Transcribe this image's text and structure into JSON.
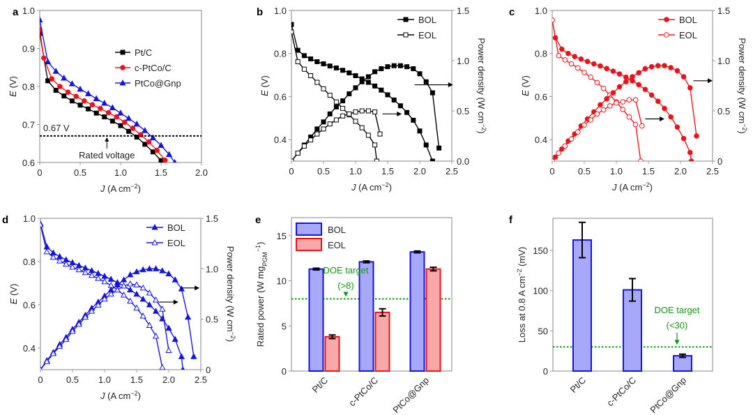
{
  "chart_data": [
    {
      "id": "a",
      "panel_letter": "a",
      "type": "line",
      "xlabel": "J (A cm−2)",
      "ylabel": "E (V)",
      "xlim": [
        0,
        2.0
      ],
      "ylim": [
        0.6,
        1.0
      ],
      "xticks": [
        "0",
        "0.5",
        "1.0",
        "1.5",
        "2.0"
      ],
      "yticks": [
        "0.6",
        "0.7",
        "0.8",
        "0.9",
        "1.0"
      ],
      "legend_position": "center-right",
      "series": [
        {
          "name": "Pt/C",
          "color": "#000000",
          "marker": "square",
          "x": [
            0,
            0.1,
            0.2,
            0.3,
            0.4,
            0.5,
            0.6,
            0.7,
            0.8,
            0.9,
            1.0,
            1.1,
            1.2,
            1.3,
            1.4,
            1.5
          ],
          "y": [
            0.94,
            0.815,
            0.79,
            0.775,
            0.762,
            0.751,
            0.741,
            0.73,
            0.72,
            0.709,
            0.697,
            0.682,
            0.667,
            0.648,
            0.628,
            0.605
          ]
        },
        {
          "name": "c-PtCo/C",
          "color": "#e8141c",
          "marker": "circle",
          "x": [
            0,
            0.05,
            0.15,
            0.25,
            0.35,
            0.45,
            0.55,
            0.65,
            0.75,
            0.85,
            0.95,
            1.05,
            1.15,
            1.25,
            1.35,
            1.45,
            1.55
          ],
          "y": [
            0.95,
            0.875,
            0.82,
            0.8,
            0.785,
            0.774,
            0.762,
            0.752,
            0.742,
            0.731,
            0.72,
            0.706,
            0.69,
            0.673,
            0.654,
            0.632,
            0.606
          ]
        },
        {
          "name": "PtCo@Gnp",
          "color": "#1414e0",
          "marker": "triangle",
          "x": [
            0,
            0.1,
            0.2,
            0.3,
            0.4,
            0.5,
            0.6,
            0.7,
            0.8,
            0.9,
            1.0,
            1.1,
            1.2,
            1.3,
            1.4,
            1.5,
            1.6,
            1.67
          ],
          "y": [
            0.975,
            0.865,
            0.84,
            0.822,
            0.807,
            0.793,
            0.781,
            0.768,
            0.756,
            0.744,
            0.73,
            0.716,
            0.701,
            0.684,
            0.665,
            0.645,
            0.621,
            0.6
          ]
        }
      ],
      "annotations": [
        {
          "text": "0.67 V",
          "type": "hline",
          "y": 0.67,
          "style": "dotted",
          "color": "#000000"
        },
        {
          "text": "Rated voltage",
          "type": "arrow-label",
          "x": 0.83
        }
      ]
    },
    {
      "id": "b",
      "panel_letter": "b",
      "type": "line",
      "xlabel": "J (A cm−2)",
      "ylabel": "E (V)",
      "y2label": "Power density (W cm−2)",
      "xlim": [
        0,
        2.5
      ],
      "ylim": [
        0.3,
        1.0
      ],
      "y2lim": [
        0,
        1.5
      ],
      "xticks": [
        "0",
        "0.5",
        "1.0",
        "1.5",
        "2.0",
        "2.5"
      ],
      "yticks": [
        "0.4",
        "0.6",
        "0.8",
        "1.0"
      ],
      "y2ticks": [
        "0.0",
        "0.5",
        "1.0",
        "1.5"
      ],
      "legend_position": "top-right",
      "color": "#000000",
      "series": [
        {
          "name": "BOL",
          "marker": "square-filled",
          "axis": "left",
          "x": [
            0,
            0.1,
            0.2,
            0.3,
            0.4,
            0.5,
            0.6,
            0.7,
            0.8,
            0.9,
            1.0,
            1.1,
            1.2,
            1.3,
            1.4,
            1.5,
            1.6,
            1.7,
            1.8,
            1.9,
            2.0,
            2.1,
            2.2
          ],
          "y": [
            0.935,
            0.815,
            0.79,
            0.775,
            0.762,
            0.752,
            0.742,
            0.733,
            0.722,
            0.71,
            0.697,
            0.682,
            0.666,
            0.649,
            0.63,
            0.608,
            0.584,
            0.557,
            0.526,
            0.49,
            0.44,
            0.375,
            0.3
          ]
        },
        {
          "name": "EOL",
          "marker": "square-open",
          "axis": "left",
          "x": [
            0,
            0.1,
            0.2,
            0.3,
            0.4,
            0.5,
            0.6,
            0.7,
            0.8,
            0.9,
            1.0,
            1.1,
            1.2,
            1.3,
            1.33
          ],
          "y": [
            0.9,
            0.762,
            0.727,
            0.697,
            0.666,
            0.636,
            0.606,
            0.575,
            0.545,
            0.515,
            0.485,
            0.455,
            0.42,
            0.375,
            0.3
          ]
        },
        {
          "name": "BOL power",
          "marker": "square-filled",
          "axis": "right",
          "x": [
            0,
            0.1,
            0.2,
            0.3,
            0.4,
            0.5,
            0.6,
            0.7,
            0.8,
            0.9,
            1.0,
            1.1,
            1.2,
            1.3,
            1.4,
            1.5,
            1.6,
            1.7,
            1.8,
            1.9,
            2.0,
            2.1,
            2.2,
            2.3
          ],
          "y": [
            0.0,
            0.08,
            0.16,
            0.24,
            0.32,
            0.39,
            0.47,
            0.54,
            0.6,
            0.67,
            0.73,
            0.79,
            0.84,
            0.89,
            0.92,
            0.94,
            0.95,
            0.95,
            0.94,
            0.92,
            0.87,
            0.79,
            0.68,
            0.13
          ]
        },
        {
          "name": "EOL power",
          "marker": "square-open",
          "axis": "right",
          "x": [
            0,
            0.1,
            0.2,
            0.3,
            0.4,
            0.5,
            0.6,
            0.7,
            0.8,
            0.9,
            1.0,
            1.1,
            1.2,
            1.3,
            1.38
          ],
          "y": [
            0.0,
            0.08,
            0.15,
            0.21,
            0.27,
            0.32,
            0.37,
            0.41,
            0.45,
            0.47,
            0.49,
            0.5,
            0.5,
            0.49,
            0.27
          ]
        }
      ]
    },
    {
      "id": "c",
      "panel_letter": "c",
      "type": "line",
      "xlabel": "J (A cm−2)",
      "ylabel": "E (V)",
      "y2label": "Power density (W cm−2)",
      "xlim": [
        0,
        2.5
      ],
      "ylim": [
        0.3,
        1.0
      ],
      "y2lim": [
        0,
        1.5
      ],
      "xticks": [
        "0",
        "0.5",
        "1.0",
        "1.5",
        "2.0",
        "2.5"
      ],
      "yticks": [
        "0.4",
        "0.6",
        "0.8",
        "1.0"
      ],
      "y2ticks": [
        "0",
        "0.5",
        "1.0",
        "1.5"
      ],
      "legend_position": "top-right",
      "color": "#e8141c",
      "series": [
        {
          "name": "BOL",
          "marker": "circle-filled",
          "axis": "left",
          "x": [
            0,
            0.05,
            0.15,
            0.25,
            0.35,
            0.45,
            0.55,
            0.65,
            0.75,
            0.85,
            0.95,
            1.05,
            1.15,
            1.25,
            1.35,
            1.45,
            1.55,
            1.65,
            1.75,
            1.85,
            1.95,
            2.05,
            2.15,
            2.17
          ],
          "y": [
            0.955,
            0.873,
            0.82,
            0.8,
            0.786,
            0.774,
            0.763,
            0.752,
            0.742,
            0.73,
            0.718,
            0.705,
            0.69,
            0.673,
            0.655,
            0.633,
            0.607,
            0.578,
            0.545,
            0.505,
            0.458,
            0.405,
            0.34,
            0.3
          ]
        },
        {
          "name": "EOL",
          "marker": "circle-open",
          "axis": "left",
          "x": [
            0,
            0.1,
            0.2,
            0.3,
            0.4,
            0.5,
            0.6,
            0.7,
            0.8,
            0.9,
            1.0,
            1.1,
            1.2,
            1.3,
            1.38
          ],
          "y": [
            0.955,
            0.79,
            0.77,
            0.752,
            0.733,
            0.712,
            0.69,
            0.665,
            0.638,
            0.607,
            0.575,
            0.54,
            0.505,
            0.47,
            0.3
          ]
        },
        {
          "name": "BOL power",
          "marker": "circle-filled",
          "axis": "right",
          "x": [
            0,
            0.05,
            0.15,
            0.25,
            0.35,
            0.45,
            0.55,
            0.65,
            0.75,
            0.85,
            0.95,
            1.05,
            1.15,
            1.25,
            1.35,
            1.45,
            1.55,
            1.65,
            1.75,
            1.85,
            1.95,
            2.05,
            2.15,
            2.25
          ],
          "y": [
            0.0,
            0.04,
            0.12,
            0.2,
            0.27,
            0.35,
            0.42,
            0.49,
            0.56,
            0.62,
            0.68,
            0.74,
            0.79,
            0.84,
            0.88,
            0.92,
            0.94,
            0.95,
            0.95,
            0.93,
            0.9,
            0.84,
            0.73,
            0.25
          ]
        },
        {
          "name": "EOL power",
          "marker": "circle-open",
          "axis": "right",
          "x": [
            0,
            0.1,
            0.2,
            0.3,
            0.4,
            0.5,
            0.6,
            0.7,
            0.8,
            0.9,
            1.0,
            1.1,
            1.2,
            1.3,
            1.4
          ],
          "y": [
            0.0,
            0.08,
            0.15,
            0.22,
            0.29,
            0.36,
            0.41,
            0.47,
            0.51,
            0.55,
            0.58,
            0.59,
            0.61,
            0.61,
            0.35
          ]
        }
      ]
    },
    {
      "id": "d",
      "panel_letter": "d",
      "type": "line",
      "xlabel": "J (A cm−2)",
      "ylabel": "E (V)",
      "y2label": "Power density (W cm−2)",
      "xlim": [
        0,
        2.5
      ],
      "ylim": [
        0.3,
        1.0
      ],
      "y2lim": [
        0,
        1.5
      ],
      "xticks": [
        "0",
        "0.5",
        "1.0",
        "1.5",
        "2.0",
        "2.5"
      ],
      "yticks": [
        "0.4",
        "0.6",
        "0.8",
        "1.0"
      ],
      "y2ticks": [
        "0",
        "0.5",
        "1.0",
        "1.5"
      ],
      "legend_position": "top-right",
      "color": "#1414e0",
      "series": [
        {
          "name": "BOL",
          "marker": "triangle-filled",
          "axis": "left",
          "x": [
            0,
            0.1,
            0.2,
            0.3,
            0.4,
            0.5,
            0.6,
            0.7,
            0.8,
            0.9,
            1.0,
            1.1,
            1.2,
            1.3,
            1.4,
            1.5,
            1.6,
            1.7,
            1.8,
            1.9,
            2.0,
            2.1,
            2.2,
            2.22
          ],
          "y": [
            0.975,
            0.868,
            0.84,
            0.823,
            0.808,
            0.795,
            0.782,
            0.77,
            0.758,
            0.745,
            0.732,
            0.718,
            0.703,
            0.687,
            0.669,
            0.649,
            0.626,
            0.6,
            0.57,
            0.535,
            0.492,
            0.44,
            0.36,
            0.3
          ]
        },
        {
          "name": "EOL",
          "marker": "triangle-open",
          "axis": "left",
          "x": [
            0,
            0.1,
            0.2,
            0.3,
            0.4,
            0.5,
            0.6,
            0.7,
            0.8,
            0.9,
            1.0,
            1.1,
            1.2,
            1.3,
            1.4,
            1.5,
            1.6,
            1.7,
            1.8,
            1.9
          ],
          "y": [
            0.97,
            0.845,
            0.82,
            0.803,
            0.788,
            0.774,
            0.762,
            0.749,
            0.736,
            0.722,
            0.707,
            0.69,
            0.669,
            0.645,
            0.617,
            0.585,
            0.548,
            0.505,
            0.455,
            0.31
          ]
        },
        {
          "name": "BOL power",
          "marker": "triangle-filled",
          "axis": "right",
          "x": [
            0,
            0.1,
            0.2,
            0.3,
            0.4,
            0.5,
            0.6,
            0.7,
            0.8,
            0.9,
            1.0,
            1.1,
            1.2,
            1.3,
            1.4,
            1.5,
            1.6,
            1.7,
            1.8,
            1.9,
            2.0,
            2.1,
            2.2,
            2.3,
            2.39
          ],
          "y": [
            0.0,
            0.09,
            0.17,
            0.25,
            0.32,
            0.4,
            0.47,
            0.54,
            0.61,
            0.67,
            0.73,
            0.79,
            0.84,
            0.89,
            0.94,
            0.97,
            0.99,
            1.0,
            1.0,
            0.98,
            0.95,
            0.89,
            0.8,
            0.52,
            0.13
          ]
        },
        {
          "name": "EOL power",
          "marker": "triangle-open",
          "axis": "right",
          "x": [
            0,
            0.1,
            0.2,
            0.3,
            0.4,
            0.5,
            0.6,
            0.7,
            0.8,
            0.9,
            1.0,
            1.1,
            1.2,
            1.3,
            1.4,
            1.5,
            1.6,
            1.7,
            1.8,
            1.9,
            2.0
          ],
          "y": [
            0.0,
            0.08,
            0.16,
            0.23,
            0.3,
            0.38,
            0.45,
            0.52,
            0.58,
            0.64,
            0.7,
            0.75,
            0.79,
            0.83,
            0.85,
            0.84,
            0.81,
            0.76,
            0.69,
            0.6,
            0.19
          ]
        }
      ]
    },
    {
      "id": "e",
      "panel_letter": "e",
      "type": "bar",
      "ylabel": "Rated power (W mgPGM−1)",
      "ylim": [
        0,
        17
      ],
      "yticks": [
        "0",
        "5",
        "10",
        "15"
      ],
      "categories": [
        "Pt/C",
        "c-PtCo/C",
        "PtCo@Gnp"
      ],
      "legend_position": "top-left",
      "series": [
        {
          "name": "BOL",
          "fill": "#a8a8f8",
          "stroke": "#1414e0",
          "values": [
            11.3,
            12.1,
            13.2
          ],
          "errors": [
            0.1,
            0.1,
            0.1
          ]
        },
        {
          "name": "EOL",
          "fill": "#f8a8a8",
          "stroke": "#e8141c",
          "values": [
            3.8,
            6.5,
            11.3
          ],
          "errors": [
            0.2,
            0.4,
            0.2
          ]
        }
      ],
      "target": {
        "value": 8,
        "label_line1": "DOE target",
        "label_line2": "(>8)",
        "color": "#129612"
      }
    },
    {
      "id": "f",
      "panel_letter": "f",
      "type": "bar",
      "ylabel": "Loss at 0.8 A cm−2 (mV)",
      "ylim": [
        0,
        190
      ],
      "yticks": [
        "0",
        "50",
        "100",
        "150"
      ],
      "categories": [
        "Pt/C",
        "c-PtCo/C",
        "PtCo@Gnp"
      ],
      "series": [
        {
          "name": "Loss",
          "fill": "#a8a8f8",
          "stroke": "#1414e0",
          "values": [
            163,
            101,
            19
          ],
          "errors": [
            22,
            14,
            2
          ]
        }
      ],
      "target": {
        "value": 30,
        "label_line1": "DOE target",
        "label_line2": "(<30)",
        "color": "#129612"
      }
    }
  ]
}
